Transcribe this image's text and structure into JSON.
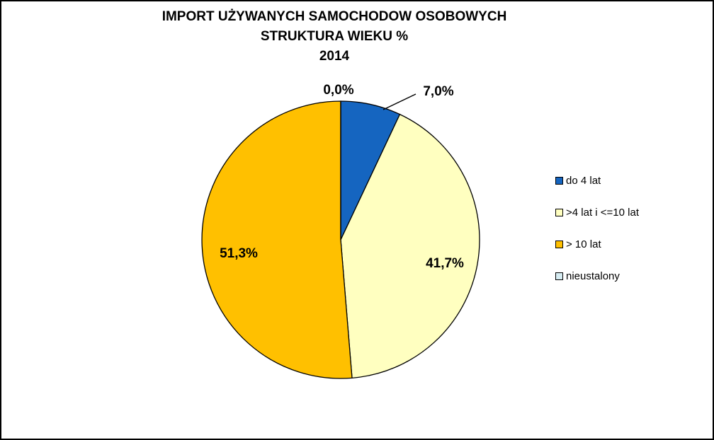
{
  "chart_data": {
    "type": "pie",
    "title_lines": [
      "IMPORT UŻYWANYCH SAMOCHODOW OSOBOWYCH",
      "STRUKTURA WIEKU %",
      "2014"
    ],
    "start_angle_deg": 0,
    "direction": "clockwise",
    "legend_position": "right",
    "slices": [
      {
        "label": "do 4 lat",
        "value": 7.0,
        "display": "7,0%",
        "color": "#1565C0"
      },
      {
        "label": ">4 lat i <=10 lat",
        "value": 41.7,
        "display": "41,7%",
        "color": "#FFFFC0"
      },
      {
        "label": "> 10 lat",
        "value": 51.3,
        "display": "51,3%",
        "color": "#FFC000"
      },
      {
        "label": "nieustalony",
        "value": 0.0,
        "display": "0,0%",
        "color": "#D6ECF2"
      }
    ],
    "slice_outline_color": "#000000"
  }
}
